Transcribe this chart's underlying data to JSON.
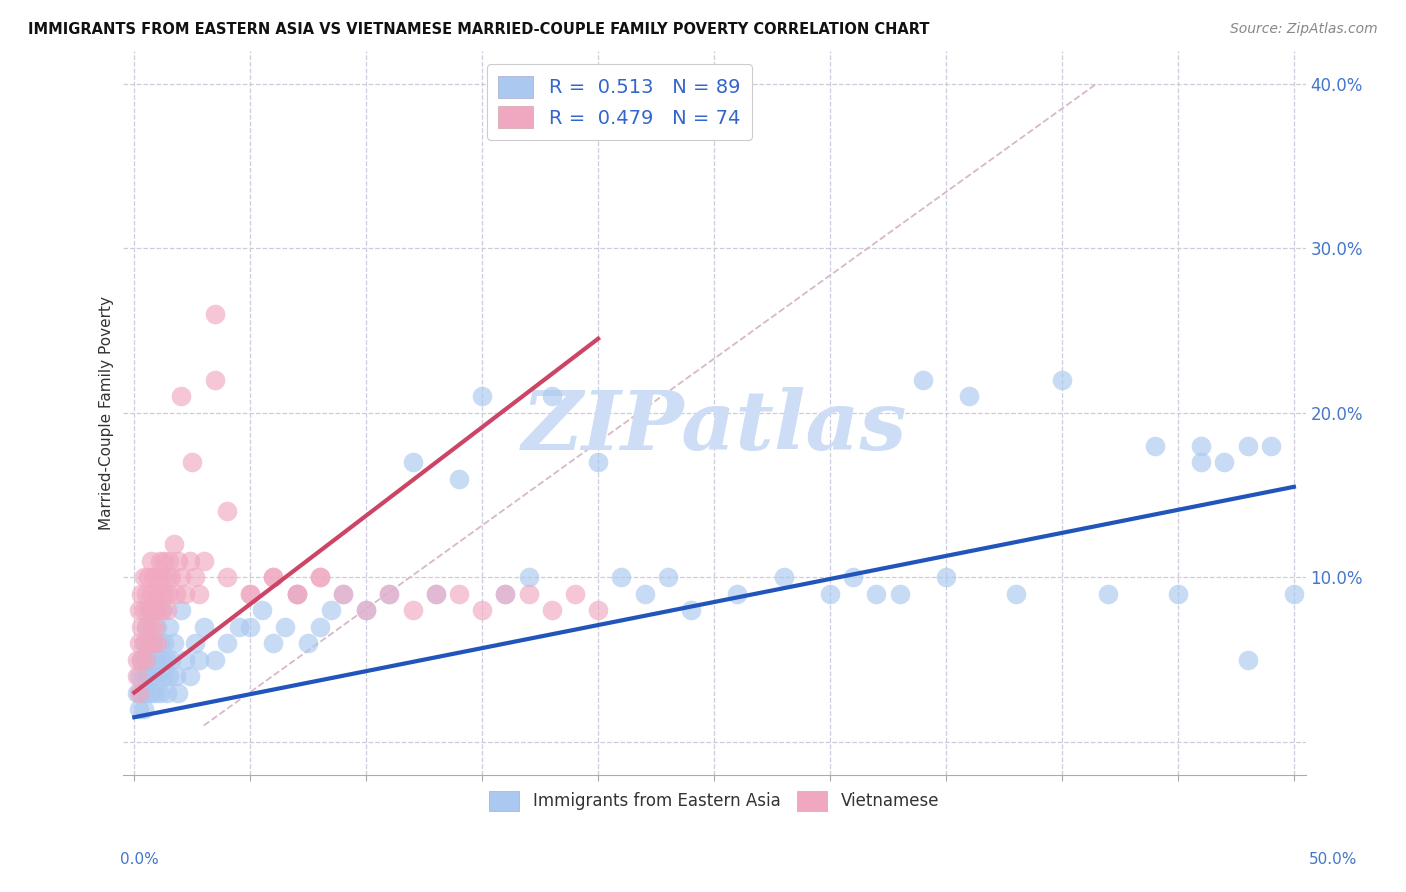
{
  "title": "IMMIGRANTS FROM EASTERN ASIA VS VIETNAMESE MARRIED-COUPLE FAMILY POVERTY CORRELATION CHART",
  "source": "Source: ZipAtlas.com",
  "ylabel": "Married-Couple Family Poverty",
  "xlim": [
    -0.005,
    0.505
  ],
  "ylim": [
    -0.02,
    0.42
  ],
  "blue_R": 0.513,
  "blue_N": 89,
  "pink_R": 0.479,
  "pink_N": 74,
  "blue_color": "#aac8f0",
  "pink_color": "#f0a8c0",
  "blue_line_color": "#2255bb",
  "pink_line_color": "#cc4466",
  "blue_scatter_x": [
    0.001,
    0.002,
    0.002,
    0.003,
    0.003,
    0.004,
    0.004,
    0.004,
    0.005,
    0.005,
    0.005,
    0.006,
    0.006,
    0.007,
    0.007,
    0.007,
    0.008,
    0.008,
    0.009,
    0.009,
    0.01,
    0.01,
    0.011,
    0.011,
    0.012,
    0.012,
    0.013,
    0.013,
    0.014,
    0.014,
    0.015,
    0.015,
    0.016,
    0.017,
    0.018,
    0.019,
    0.02,
    0.022,
    0.024,
    0.026,
    0.028,
    0.03,
    0.035,
    0.04,
    0.045,
    0.05,
    0.055,
    0.06,
    0.065,
    0.07,
    0.075,
    0.08,
    0.085,
    0.09,
    0.1,
    0.11,
    0.12,
    0.13,
    0.14,
    0.15,
    0.16,
    0.17,
    0.18,
    0.2,
    0.21,
    0.22,
    0.23,
    0.24,
    0.26,
    0.28,
    0.3,
    0.32,
    0.34,
    0.36,
    0.38,
    0.4,
    0.42,
    0.44,
    0.45,
    0.46,
    0.47,
    0.48,
    0.49,
    0.5,
    0.31,
    0.33,
    0.35,
    0.46,
    0.48
  ],
  "blue_scatter_y": [
    0.03,
    0.04,
    0.02,
    0.05,
    0.03,
    0.06,
    0.04,
    0.02,
    0.07,
    0.05,
    0.03,
    0.06,
    0.04,
    0.05,
    0.03,
    0.08,
    0.06,
    0.04,
    0.05,
    0.03,
    0.07,
    0.04,
    0.06,
    0.03,
    0.05,
    0.08,
    0.04,
    0.06,
    0.05,
    0.03,
    0.07,
    0.04,
    0.05,
    0.06,
    0.04,
    0.03,
    0.08,
    0.05,
    0.04,
    0.06,
    0.05,
    0.07,
    0.05,
    0.06,
    0.07,
    0.07,
    0.08,
    0.06,
    0.07,
    0.09,
    0.06,
    0.07,
    0.08,
    0.09,
    0.08,
    0.09,
    0.17,
    0.09,
    0.16,
    0.21,
    0.09,
    0.1,
    0.21,
    0.17,
    0.1,
    0.09,
    0.1,
    0.08,
    0.09,
    0.1,
    0.09,
    0.09,
    0.22,
    0.21,
    0.09,
    0.22,
    0.09,
    0.18,
    0.09,
    0.18,
    0.17,
    0.05,
    0.18,
    0.09,
    0.1,
    0.09,
    0.1,
    0.17,
    0.18
  ],
  "pink_scatter_x": [
    0.001,
    0.001,
    0.002,
    0.002,
    0.002,
    0.003,
    0.003,
    0.003,
    0.004,
    0.004,
    0.004,
    0.005,
    0.005,
    0.005,
    0.006,
    0.006,
    0.006,
    0.007,
    0.007,
    0.007,
    0.008,
    0.008,
    0.008,
    0.009,
    0.009,
    0.01,
    0.01,
    0.01,
    0.011,
    0.011,
    0.012,
    0.012,
    0.013,
    0.013,
    0.014,
    0.014,
    0.015,
    0.015,
    0.016,
    0.017,
    0.018,
    0.019,
    0.02,
    0.022,
    0.024,
    0.026,
    0.028,
    0.03,
    0.035,
    0.04,
    0.05,
    0.06,
    0.07,
    0.08,
    0.09,
    0.1,
    0.11,
    0.12,
    0.13,
    0.14,
    0.15,
    0.16,
    0.17,
    0.18,
    0.19,
    0.2,
    0.035,
    0.02,
    0.025,
    0.04,
    0.05,
    0.06,
    0.07,
    0.08
  ],
  "pink_scatter_y": [
    0.05,
    0.04,
    0.06,
    0.08,
    0.03,
    0.07,
    0.09,
    0.05,
    0.08,
    0.06,
    0.1,
    0.07,
    0.09,
    0.05,
    0.08,
    0.1,
    0.06,
    0.09,
    0.07,
    0.11,
    0.08,
    0.1,
    0.06,
    0.09,
    0.07,
    0.1,
    0.08,
    0.06,
    0.11,
    0.09,
    0.08,
    0.1,
    0.09,
    0.11,
    0.08,
    0.1,
    0.09,
    0.11,
    0.1,
    0.12,
    0.09,
    0.11,
    0.1,
    0.09,
    0.11,
    0.1,
    0.09,
    0.11,
    0.26,
    0.14,
    0.09,
    0.1,
    0.09,
    0.1,
    0.09,
    0.08,
    0.09,
    0.08,
    0.09,
    0.09,
    0.08,
    0.09,
    0.09,
    0.08,
    0.09,
    0.08,
    0.22,
    0.21,
    0.17,
    0.1,
    0.09,
    0.1,
    0.09,
    0.1
  ],
  "blue_trend_x": [
    0.0,
    0.5
  ],
  "blue_trend_y": [
    0.015,
    0.155
  ],
  "pink_trend_x": [
    0.0,
    0.2
  ],
  "pink_trend_y": [
    0.03,
    0.245
  ],
  "ref_line_x": [
    0.03,
    0.415
  ],
  "ref_line_y": [
    0.01,
    0.4
  ],
  "watermark_text": "ZIPatlas",
  "watermark_color": "#ccddf5",
  "legend_blue": "#aac8f0",
  "legend_pink": "#f0a8c0",
  "legend_text_color": "#3366cc",
  "bottom_legend_labels": [
    "Immigrants from Eastern Asia",
    "Vietnamese"
  ]
}
